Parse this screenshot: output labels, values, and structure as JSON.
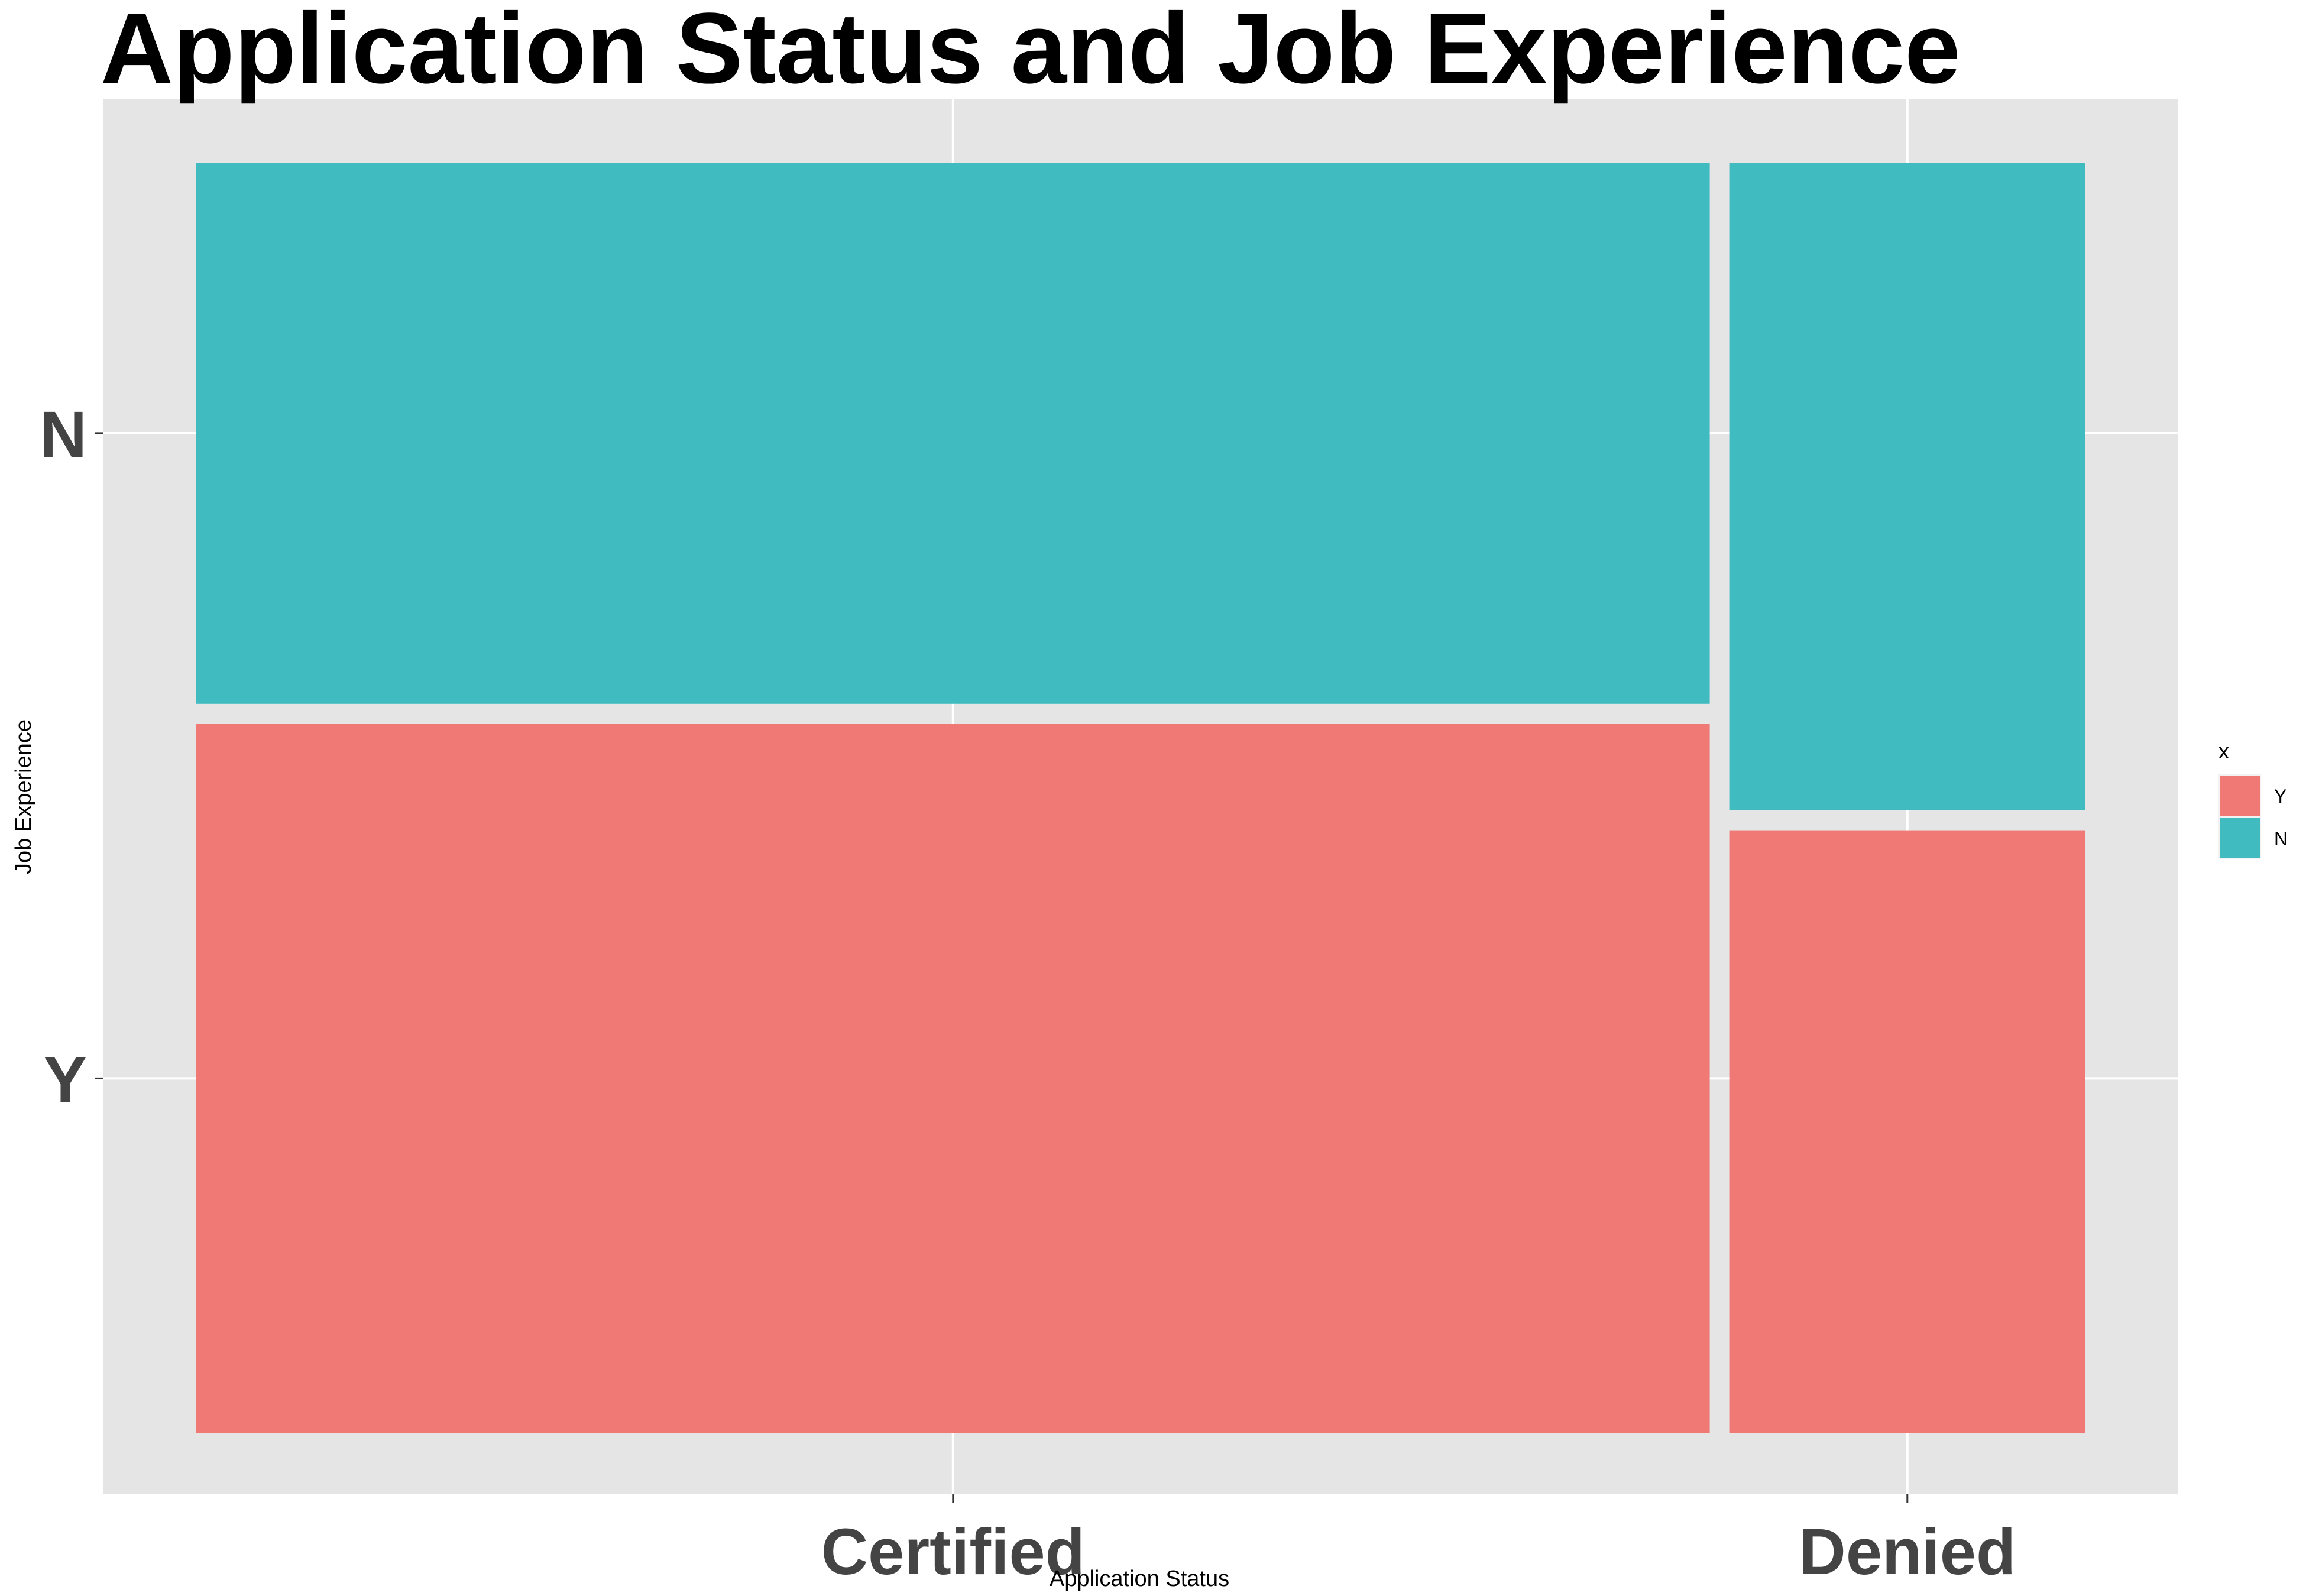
{
  "chart_data": {
    "type": "mosaic",
    "title": "Application Status and Job Experience",
    "xlabel": "Application Status",
    "ylabel": "Job Experience",
    "x_ticks": [
      "Certified",
      "Denied"
    ],
    "y_ticks": [
      "Y",
      "N"
    ],
    "legend": {
      "title": "x",
      "placement": "right",
      "entries": [
        "Y",
        "N"
      ]
    },
    "colors": {
      "Y": "#f07875",
      "N": "#40bcc0"
    },
    "categories": [
      "Certified",
      "Denied"
    ],
    "column_share": [
      0.81,
      0.19
    ],
    "series": [
      {
        "name": "Y",
        "share": [
          0.567,
          0.482
        ]
      },
      {
        "name": "N",
        "share": [
          0.433,
          0.518
        ]
      }
    ],
    "grid": true
  }
}
